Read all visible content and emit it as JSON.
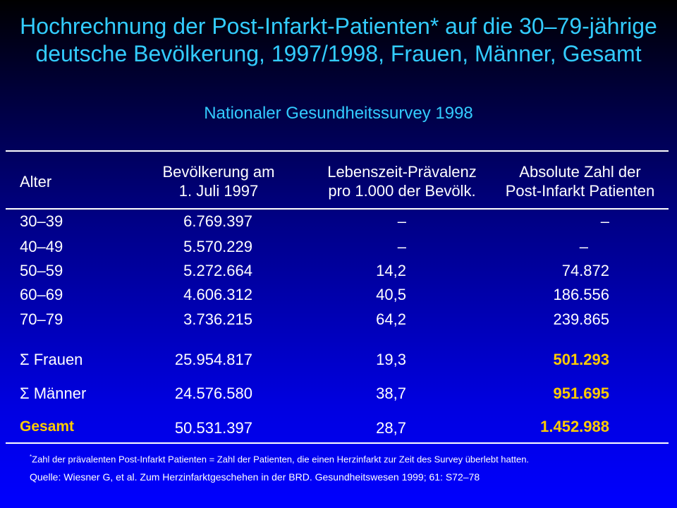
{
  "title": "Hochrechnung der Post-Infarkt-Patienten* auf die 30–79-jährige deutsche Bevölkerung, 1997/1998, Frauen, Männer, Gesamt",
  "subtitle": "Nationaler Gesundheitssurvey 1998",
  "table": {
    "headers": {
      "age": "Alter",
      "pop_line1": "Bevölkerung am",
      "pop_line2": "1. Juli 1997",
      "prev_line1": "Lebenszeit-Prävalenz",
      "prev_line2": "pro 1.000 der Bevölk.",
      "abs_line1": "Absolute Zahl der",
      "abs_line2": "Post-Infarkt Patienten"
    },
    "rows": [
      {
        "age": "30–39",
        "population": "6.769.397",
        "prevalence": "–",
        "absolute": "–"
      },
      {
        "age": "40–49",
        "population": "5.570.229",
        "prevalence": "–",
        "absolute": "–"
      },
      {
        "age": "50–59",
        "population": "5.272.664",
        "prevalence": "14,2",
        "absolute": "74.872"
      },
      {
        "age": "60–69",
        "population": "4.606.312",
        "prevalence": "40,5",
        "absolute": "186.556"
      },
      {
        "age": "70–79",
        "population": "3.736.215",
        "prevalence": "64,2",
        "absolute": "239.865"
      },
      {
        "age": "Σ Frauen",
        "population": "25.954.817",
        "prevalence": "19,3",
        "absolute": "501.293"
      },
      {
        "age": "Σ Männer",
        "population": "24.576.580",
        "prevalence": "38,7",
        "absolute": "951.695"
      },
      {
        "age": "Gesamt",
        "population": "50.531.397",
        "prevalence": "28,7",
        "absolute": "1.452.988"
      }
    ]
  },
  "footnote": {
    "marker": "*",
    "text": "Zahl der prävalenten Post-Infarkt Patienten = Zahl der Patienten, die einen Herzinfarkt zur Zeit des Survey überlebt hatten."
  },
  "source": "Quelle: Wiesner G, et al. Zum Herzinfarktgeschehen in der BRD. Gesundheitswesen 1999; 61: S72–78",
  "colors": {
    "title": "#33ccff",
    "highlight": "#ffcc00",
    "text": "#ffffff",
    "background_top": "#000000",
    "background_bottom": "#0000ff"
  }
}
